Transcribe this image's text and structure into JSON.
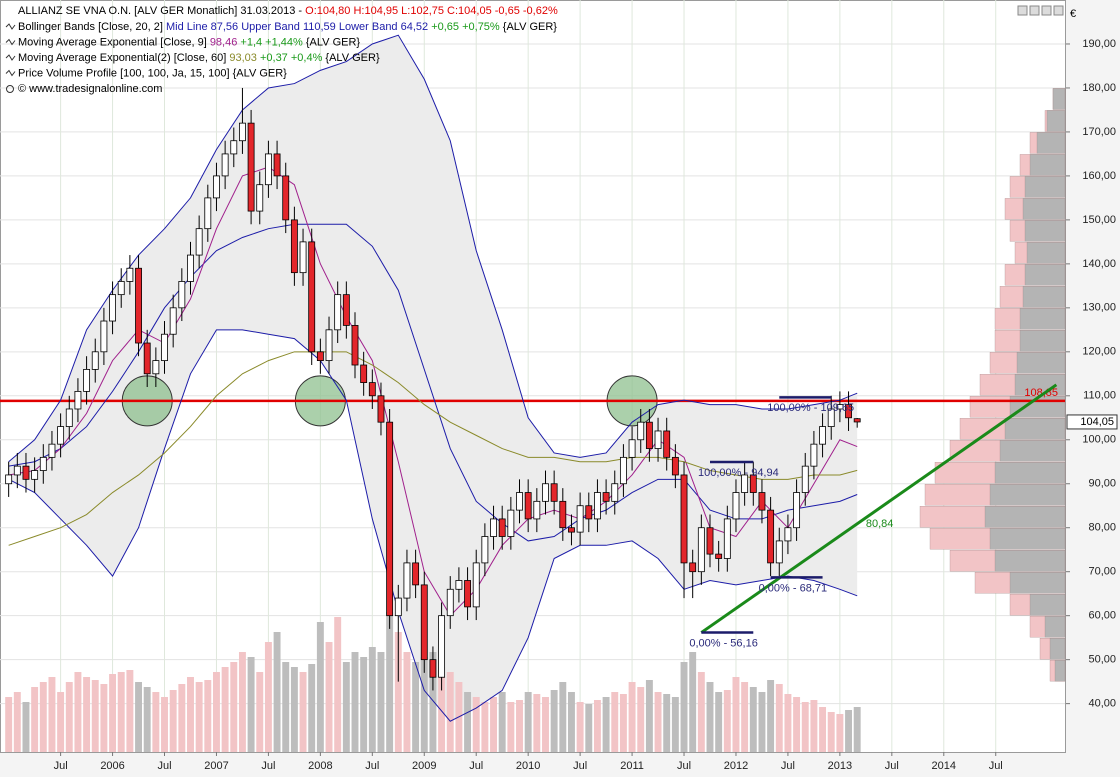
{
  "chart_data": {
    "type": "candlestick",
    "title": "ALLIANZ SE VNA O.N. [ALV GER  Monatlich] 31.03.2013 - ",
    "quote": "O:104,80 H:104,95 L:102,75 C:104,05 -0,65 -0,62%",
    "quote_color": "#e00000",
    "legend_lines": [
      [
        {
          "text": "Bollinger Bands [Close, 20, 2] ",
          "color": "#000000"
        },
        {
          "text": "Mid Line 87,56 Upper Band 110,59 Lower Band 64,52 ",
          "color": "#1c1ca8"
        },
        {
          "text": "+0,65 +0,75% ",
          "color": "#1a9a1a"
        },
        {
          "text": "{ALV GER}",
          "color": "#000000"
        }
      ],
      [
        {
          "text": "Moving Average Exponential [Close, 9] ",
          "color": "#000000"
        },
        {
          "text": "98,46 ",
          "color": "#a0208c"
        },
        {
          "text": "+1,4 +1,44% ",
          "color": "#1a9a1a"
        },
        {
          "text": "{ALV GER}",
          "color": "#000000"
        }
      ],
      [
        {
          "text": "Moving Average Exponential(2) [Close, 60] ",
          "color": "#000000"
        },
        {
          "text": "93,03 ",
          "color": "#8a8a2a"
        },
        {
          "text": "+0,37 +0,4% ",
          "color": "#1a9a1a"
        },
        {
          "text": "{ALV GER}",
          "color": "#000000"
        }
      ],
      [
        {
          "text": "Price Volume Profile [100, 100, Ja, 15, 100] {ALV GER}",
          "color": "#000000"
        }
      ]
    ],
    "source": "© www.tradesignalonline.com",
    "currency": "€",
    "x": [
      "2005-01",
      "2005-02",
      "2005-03",
      "2005-04",
      "2005-05",
      "2005-06",
      "2005-07",
      "2005-08",
      "2005-09",
      "2005-10",
      "2005-11",
      "2005-12",
      "2006-01",
      "2006-02",
      "2006-03",
      "2006-04",
      "2006-05",
      "2006-06",
      "2006-07",
      "2006-08",
      "2006-09",
      "2006-10",
      "2006-11",
      "2006-12",
      "2007-01",
      "2007-02",
      "2007-03",
      "2007-04",
      "2007-05",
      "2007-06",
      "2007-07",
      "2007-08",
      "2007-09",
      "2007-10",
      "2007-11",
      "2007-12",
      "2008-01",
      "2008-02",
      "2008-03",
      "2008-04",
      "2008-05",
      "2008-06",
      "2008-07",
      "2008-08",
      "2008-09",
      "2008-10",
      "2008-11",
      "2008-12",
      "2009-01",
      "2009-02",
      "2009-03",
      "2009-04",
      "2009-05",
      "2009-06",
      "2009-07",
      "2009-08",
      "2009-09",
      "2009-10",
      "2009-11",
      "2009-12",
      "2010-01",
      "2010-02",
      "2010-03",
      "2010-04",
      "2010-05",
      "2010-06",
      "2010-07",
      "2010-08",
      "2010-09",
      "2010-10",
      "2010-11",
      "2010-12",
      "2011-01",
      "2011-02",
      "2011-03",
      "2011-04",
      "2011-05",
      "2011-06",
      "2011-07",
      "2011-08",
      "2011-09",
      "2011-10",
      "2011-11",
      "2011-12",
      "2012-01",
      "2012-02",
      "2012-03",
      "2012-04",
      "2012-05",
      "2012-06",
      "2012-07",
      "2012-08",
      "2012-09",
      "2012-10",
      "2012-11",
      "2012-12",
      "2013-01",
      "2013-02",
      "2013-03"
    ],
    "open": [
      90,
      92,
      94,
      91,
      93,
      96,
      99,
      103,
      107,
      111,
      116,
      120,
      127,
      133,
      136,
      139,
      122,
      115,
      118,
      124,
      130,
      136,
      142,
      148,
      155,
      160,
      165,
      168,
      172,
      152,
      158,
      165,
      160,
      150,
      138,
      145,
      120,
      118,
      125,
      133,
      126,
      117,
      113,
      110,
      104,
      60,
      64,
      72,
      67,
      50,
      46,
      60,
      66,
      68,
      62,
      72,
      78,
      82,
      78,
      84,
      88,
      82,
      86,
      90,
      86,
      80,
      79,
      85,
      82,
      88,
      86,
      90,
      96,
      100,
      104,
      98,
      102,
      96,
      92,
      72,
      70,
      80,
      74,
      73,
      82,
      88,
      92,
      88,
      84,
      72,
      77,
      80,
      88,
      94,
      99,
      103,
      107,
      108,
      104.8
    ],
    "high": [
      95,
      97,
      97,
      96,
      99,
      102,
      106,
      110,
      114,
      119,
      123,
      130,
      136,
      139,
      142,
      142,
      125,
      121,
      127,
      133,
      139,
      145,
      151,
      158,
      163,
      168,
      171,
      180,
      175,
      161,
      168,
      168,
      163,
      153,
      148,
      148,
      123,
      128,
      136,
      136,
      129,
      120,
      116,
      113,
      107,
      67,
      75,
      75,
      70,
      53,
      63,
      69,
      71,
      71,
      75,
      81,
      85,
      85,
      87,
      91,
      91,
      89,
      93,
      93,
      89,
      83,
      88,
      88,
      91,
      91,
      93,
      99,
      103,
      107,
      107,
      105,
      105,
      99,
      95,
      75,
      83,
      83,
      77,
      85,
      91,
      95,
      95,
      91,
      87,
      80,
      83,
      91,
      97,
      102,
      106,
      110,
      111,
      111,
      104.95
    ],
    "low": [
      87,
      89,
      88,
      88,
      90,
      93,
      96,
      100,
      104,
      108,
      113,
      117,
      124,
      130,
      133,
      119,
      112,
      112,
      115,
      121,
      127,
      133,
      139,
      145,
      152,
      157,
      162,
      165,
      149,
      149,
      155,
      157,
      147,
      135,
      135,
      117,
      115,
      115,
      122,
      123,
      114,
      110,
      107,
      101,
      57,
      45,
      61,
      64,
      47,
      43,
      43,
      57,
      63,
      59,
      59,
      69,
      75,
      75,
      75,
      81,
      79,
      79,
      83,
      83,
      77,
      76,
      76,
      79,
      79,
      83,
      83,
      87,
      93,
      97,
      95,
      95,
      93,
      89,
      64,
      64,
      67,
      71,
      70,
      70,
      79,
      85,
      85,
      81,
      69,
      69,
      74,
      77,
      85,
      91,
      96,
      100,
      104,
      102,
      102.75
    ],
    "close": [
      92,
      94,
      91,
      93,
      96,
      99,
      103,
      107,
      111,
      116,
      120,
      127,
      133,
      136,
      139,
      122,
      115,
      118,
      124,
      130,
      136,
      142,
      148,
      155,
      160,
      165,
      168,
      172,
      152,
      158,
      165,
      160,
      150,
      138,
      145,
      120,
      118,
      125,
      133,
      126,
      117,
      113,
      110,
      104,
      60,
      64,
      72,
      67,
      50,
      46,
      60,
      66,
      68,
      62,
      72,
      78,
      82,
      78,
      84,
      88,
      82,
      86,
      90,
      86,
      80,
      79,
      85,
      82,
      88,
      86,
      90,
      96,
      100,
      104,
      98,
      102,
      96,
      92,
      72,
      70,
      80,
      74,
      73,
      82,
      88,
      92,
      88,
      84,
      72,
      77,
      80,
      88,
      94,
      99,
      103,
      107,
      108,
      105,
      104.05
    ],
    "last_label": "104,05",
    "up_color": "#ffffff",
    "down_color": "#e3262b",
    "volume": {
      "values": [
        55,
        60,
        50,
        65,
        70,
        75,
        60,
        70,
        80,
        75,
        72,
        68,
        78,
        80,
        82,
        70,
        65,
        60,
        55,
        62,
        68,
        75,
        70,
        72,
        80,
        85,
        90,
        100,
        95,
        80,
        110,
        120,
        90,
        85,
        80,
        88,
        130,
        110,
        135,
        90,
        100,
        95,
        105,
        100,
        140,
        120,
        100,
        90,
        95,
        100,
        85,
        80,
        70,
        60,
        55,
        50,
        55,
        60,
        50,
        52,
        60,
        58,
        55,
        62,
        70,
        60,
        50,
        48,
        52,
        55,
        60,
        58,
        70,
        65,
        72,
        60,
        58,
        55,
        90,
        100,
        80,
        70,
        60,
        62,
        75,
        70,
        65,
        60,
        72,
        68,
        58,
        55,
        50,
        52,
        45,
        40,
        38,
        42,
        45
      ],
      "up_color": "#f2c4c6",
      "down_color": "#bdbdbd"
    },
    "overlays": {
      "x": [
        "2005-01",
        "2005-04",
        "2005-07",
        "2005-10",
        "2006-01",
        "2006-04",
        "2006-07",
        "2006-10",
        "2007-01",
        "2007-04",
        "2007-07",
        "2007-10",
        "2008-01",
        "2008-04",
        "2008-07",
        "2008-10",
        "2009-01",
        "2009-04",
        "2009-07",
        "2009-10",
        "2010-01",
        "2010-04",
        "2010-07",
        "2010-10",
        "2011-01",
        "2011-04",
        "2011-07",
        "2011-10",
        "2012-01",
        "2012-04",
        "2012-07",
        "2012-10",
        "2013-01",
        "2013-03"
      ],
      "band_fill": "#ececec",
      "series": [
        {
          "color": "#1c1ca8",
          "values": [
            95,
            100,
            109,
            125,
            134,
            142,
            148,
            155,
            166,
            175,
            180,
            181,
            184,
            186,
            190,
            192,
            182,
            168,
            143,
            125,
            105,
            97,
            96,
            97,
            104,
            108,
            109,
            108,
            108,
            107,
            107,
            108,
            109,
            110.59
          ]
        },
        {
          "color": "#1c1ca8",
          "values": [
            94,
            95,
            98,
            103,
            111,
            120,
            130,
            137,
            143,
            146,
            148,
            149,
            149,
            149,
            144,
            134,
            116,
            98,
            86,
            81,
            77,
            78,
            82,
            84,
            88,
            91,
            91,
            84,
            82,
            82,
            84,
            85,
            86,
            87.56
          ]
        },
        {
          "color": "#1c1ca8",
          "values": [
            91,
            88,
            82,
            76,
            69,
            80,
            98,
            115,
            125,
            125,
            124,
            123,
            118,
            109,
            82,
            61,
            43,
            36,
            39,
            43,
            55,
            73,
            76,
            76,
            77,
            73,
            66,
            68,
            67,
            68,
            69,
            68,
            66,
            64.52
          ]
        },
        {
          "color": "#a0208c",
          "values": [
            92,
            93,
            98,
            106,
            118,
            125,
            122,
            132,
            148,
            160,
            162,
            158,
            140,
            128,
            118,
            95,
            70,
            60,
            66,
            76,
            82,
            84,
            82,
            86,
            92,
            100,
            96,
            80,
            78,
            86,
            80,
            90,
            100,
            98.46
          ]
        },
        {
          "color": "#8a8a2a",
          "values": [
            76,
            78,
            80,
            83,
            88,
            92,
            97,
            103,
            110,
            115,
            118,
            120,
            120,
            120,
            117,
            113,
            108,
            104,
            101,
            98,
            96,
            96,
            95,
            95,
            96,
            96,
            95,
            93,
            92,
            91,
            91,
            92,
            92,
            93.03
          ]
        }
      ]
    },
    "level": {
      "value": 108.85,
      "label": "108,85",
      "color": "#e00000"
    },
    "circles": {
      "x": [
        "2006-05",
        "2008-01",
        "2011-01"
      ],
      "color": "#8fc08f"
    },
    "trendline": {
      "x": [
        "2011-09",
        "2015-02"
      ],
      "values": [
        56.16,
        112.5
      ],
      "color": "#1a8a1a",
      "label": "80,84",
      "label_value": 80.84,
      "label_x": "2013-04"
    },
    "fib": [
      {
        "label": "100,00% - 109,65",
        "value": 109.65,
        "x": [
          "2012-06",
          "2012-12"
        ]
      },
      {
        "label": "100,00% - 94,94",
        "value": 94.94,
        "x": [
          "2011-10",
          "2012-03"
        ]
      },
      {
        "label": "0,00% - 68,71",
        "value": 68.71,
        "x": [
          "2012-05",
          "2012-11"
        ]
      },
      {
        "label": "0,00% - 56,16",
        "value": 56.16,
        "x": [
          "2011-09",
          "2012-03"
        ]
      }
    ],
    "fib_color": "#1c1c6a",
    "profile": {
      "bins": [
        45,
        50,
        55,
        60,
        65,
        70,
        75,
        80,
        85,
        90,
        95,
        100,
        105,
        110,
        115,
        120,
        125,
        130,
        135,
        140,
        145,
        150,
        155,
        160,
        165,
        170,
        175,
        180
      ],
      "series": [
        {
          "color": "#f2c4c6",
          "values": [
            15,
            25,
            35,
            55,
            90,
            115,
            135,
            145,
            140,
            130,
            115,
            105,
            95,
            85,
            75,
            70,
            70,
            65,
            60,
            50,
            55,
            60,
            55,
            45,
            35,
            20,
            12
          ]
        },
        {
          "color": "#b4b4b4",
          "values": [
            10,
            15,
            20,
            35,
            55,
            70,
            75,
            80,
            75,
            70,
            65,
            60,
            55,
            50,
            48,
            45,
            45,
            42,
            40,
            38,
            40,
            42,
            40,
            35,
            28,
            18,
            12
          ]
        }
      ]
    },
    "ylim": [
      29,
      200
    ],
    "yticks": [
      {
        "value": 40,
        "label": "40,00"
      },
      {
        "value": 50,
        "label": "50,00"
      },
      {
        "value": 60,
        "label": "60,00"
      },
      {
        "value": 70,
        "label": "70,00"
      },
      {
        "value": 80,
        "label": "80,00"
      },
      {
        "value": 90,
        "label": "90,00"
      },
      {
        "value": 100,
        "label": "100,00"
      },
      {
        "value": 110,
        "label": "110,00"
      },
      {
        "value": 120,
        "label": "120,00"
      },
      {
        "value": 130,
        "label": "130,00"
      },
      {
        "value": 140,
        "label": "140,00"
      },
      {
        "value": 150,
        "label": "150,00"
      },
      {
        "value": 160,
        "label": "160,00"
      },
      {
        "value": 170,
        "label": "170,00"
      },
      {
        "value": 180,
        "label": "180,00"
      },
      {
        "value": 190,
        "label": "190,00"
      }
    ],
    "xlim": [
      "2004-12",
      "2015-03"
    ],
    "xticks": [
      {
        "value": "2005-07",
        "label": "Jul"
      },
      {
        "value": "2006-01",
        "label": "2006"
      },
      {
        "value": "2006-07",
        "label": "Jul"
      },
      {
        "value": "2007-01",
        "label": "2007"
      },
      {
        "value": "2007-07",
        "label": "Jul"
      },
      {
        "value": "2008-01",
        "label": "2008"
      },
      {
        "value": "2008-07",
        "label": "Jul"
      },
      {
        "value": "2009-01",
        "label": "2009"
      },
      {
        "value": "2009-07",
        "label": "Jul"
      },
      {
        "value": "2010-01",
        "label": "2010"
      },
      {
        "value": "2010-07",
        "label": "Jul"
      },
      {
        "value": "2011-01",
        "label": "2011"
      },
      {
        "value": "2011-07",
        "label": "Jul"
      },
      {
        "value": "2012-01",
        "label": "2012"
      },
      {
        "value": "2012-07",
        "label": "Jul"
      },
      {
        "value": "2013-01",
        "label": "2013"
      },
      {
        "value": "2013-07",
        "label": "Jul"
      },
      {
        "value": "2014-01",
        "label": "2014"
      },
      {
        "value": "2014-07",
        "label": "Jul"
      }
    ],
    "grid": true
  }
}
